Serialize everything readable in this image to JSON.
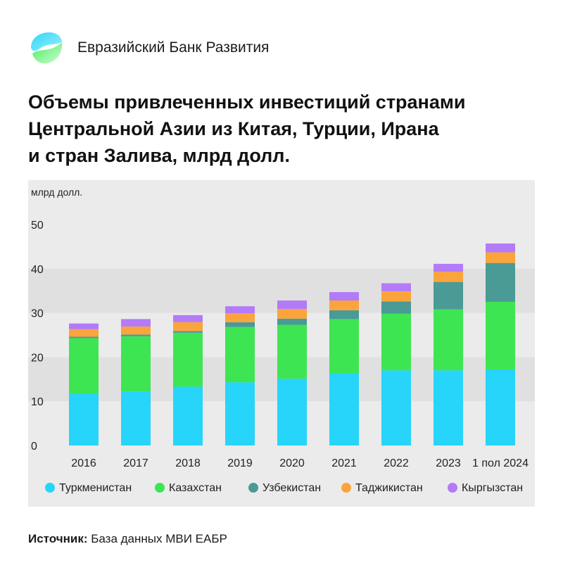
{
  "brand": {
    "name": "Евразийский Банк Развития",
    "logo_icon": "ebr-logo-icon",
    "colors": {
      "logo_primary": "#2FD5F7",
      "logo_secondary": "#4BEB5E"
    }
  },
  "title": "Объемы привлеченных инвестиций странами\nЦентральной Азии из Китая, Турции, Ирана\nи стран Залива, млрд долл.",
  "source": {
    "label": "Источник:",
    "text": "База данных МВИ ЕАБР"
  },
  "chart_data": {
    "type": "bar",
    "stacked": true,
    "unit_label": "млрд долл.",
    "categories": [
      "2016",
      "2017",
      "2018",
      "2019",
      "2020",
      "2021",
      "2022",
      "2023",
      "1 пол 2024"
    ],
    "ylim": [
      0,
      50
    ],
    "yticks": [
      0,
      10,
      20,
      30,
      40,
      50
    ],
    "grid": "alternating horizontal bands",
    "legend_position": "bottom",
    "series": [
      {
        "name": "Туркменистан",
        "color": "#27D4FA",
        "values": [
          11.7,
          12.2,
          13.3,
          14.3,
          15.1,
          16.4,
          17.0,
          17.0,
          17.2
        ]
      },
      {
        "name": "Казахстан",
        "color": "#3EE553",
        "values": [
          12.6,
          12.5,
          12.2,
          12.5,
          12.2,
          12.2,
          12.8,
          13.8,
          15.3
        ]
      },
      {
        "name": "Узбекистан",
        "color": "#4A9A96",
        "values": [
          0.3,
          0.4,
          0.4,
          1.1,
          1.4,
          2.0,
          2.8,
          6.2,
          8.8
        ]
      },
      {
        "name": "Таджикистан",
        "color": "#FBA43B",
        "values": [
          1.7,
          1.8,
          2.0,
          2.0,
          2.2,
          2.2,
          2.3,
          2.3,
          2.4
        ]
      },
      {
        "name": "Кыргызстан",
        "color": "#B37BF7",
        "values": [
          1.3,
          1.7,
          1.6,
          1.6,
          1.9,
          1.9,
          1.8,
          1.8,
          2.0
        ]
      }
    ]
  }
}
